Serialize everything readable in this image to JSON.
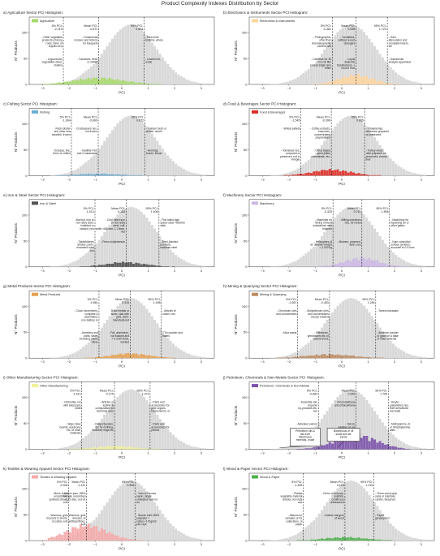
{
  "title": "Product Complexity Indexes Distribution by Sector",
  "axes": {
    "xlabel": "PCI",
    "ylabel": "N° Products",
    "xlim": [
      -3.5,
      3.5
    ],
    "ylim": [
      0,
      130
    ],
    "xticks": [
      "−3",
      "−2",
      "−1",
      "0",
      "1",
      "2",
      "3"
    ],
    "yticks": [
      "0",
      "50",
      "100"
    ],
    "grid": false,
    "legend_placement": "top-left",
    "background_color": "#d9d9d9"
  },
  "chart_data": [
    {
      "type": "bar",
      "panel": "a",
      "title": "a) Agriculture Sector PCI Histogram:",
      "legend": "Agriculture",
      "color": "#a6d96a",
      "stats": {
        "p5": "5% PCI:\n-2.210",
        "mean": "Mean PCI:\n-0.872",
        "p95": "95% PCI:\n0.844"
      },
      "annotations": [
        {
          "col": "p5",
          "row": "top",
          "text": "- Other vegetable\nproducts (chicory\nroots, tuber of\nkoyaku etc)"
        },
        {
          "col": "p5",
          "row": "bot",
          "text": "- Leguminous\nvegetables dried,\nshelled"
        },
        {
          "col": "mean",
          "row": "top",
          "text": "- Ornamental\nmosses and lichens\nfor bouquets"
        },
        {
          "col": "mean",
          "row": "bot",
          "text": "- Tomatoes, fresh\nor chilled"
        },
        {
          "col": "p95",
          "row": "top",
          "text": "- Raw mink\nfurskins, whole"
        },
        {
          "col": "p95",
          "row": "bot",
          "text": "- Linseed oil,\ncrude"
        }
      ]
    },
    {
      "type": "bar",
      "panel": "b",
      "title": "b) Electronics & Instruments Sector PCI Histogram:",
      "legend": "Electronics & Instruments",
      "color": "#fdd49e",
      "stats": {
        "p5": "5% PCI:\n-0.361",
        "mean": "Mean PCI:\n0.538",
        "p95": "95% PCI:\n1.723"
      },
      "annotations": [
        {
          "col": "p5",
          "row": "top",
          "text": "- Photographic,\nother than\ncinematographic\ncamera nes"
        },
        {
          "col": "p5",
          "row": "bot",
          "text": "- Cameras for 35\nmm roll film\nexcept single lens\nreflex"
        },
        {
          "col": "mean",
          "row": "top",
          "text": "- Turntables,\nwithout record\nchangers"
        },
        {
          "col": "mean",
          "row": "bot",
          "text": "- Liquid\ndielectric\ntransformers, >\n10,000 KVA"
        },
        {
          "col": "p95",
          "row": "top",
          "text": "- Gain,\nattenuation and\ncrosstalk meters,\netc"
        },
        {
          "col": "p95",
          "row": "bot",
          "text": "- Gas/smoke\nanalysis apparatus"
        }
      ]
    },
    {
      "type": "bar",
      "panel": "c",
      "title": "c) Fishing Sector PCI Histogram:",
      "legend": "Fishing",
      "color": "#6baed6",
      "stats": {
        "p5": "5% PCI:\n-1.904",
        "mean": "Mean PCI:\n-0.890",
        "p95": "95% PCI:\n0.872"
      },
      "annotations": [
        {
          "col": "p5",
          "row": "top",
          "text": "- Rock lobster\nand other sea\ncrawfish, frozen"
        },
        {
          "col": "p5",
          "row": "bot",
          "text": "- Octopus, live,\nfresh or chilled"
        },
        {
          "col": "mean",
          "row": "top",
          "text": "- Crustaceans nes,\nnot frozen"
        },
        {
          "col": "mean",
          "row": "bot",
          "text": "- Inedible Fish\nand Crustaceans"
        },
        {
          "col": "p95",
          "row": "top",
          "text": "- Salmon fresh or\nchilled, whole"
        },
        {
          "col": "p95",
          "row": "bot",
          "text": "- Herrings,\nfrozen, whole"
        }
      ]
    },
    {
      "type": "bar",
      "panel": "d",
      "title": "d) Food & Beverages Sector PCI Histogram:",
      "legend": "Food & Beverages",
      "color": "#de2d26",
      "stats": {
        "p5": "5% PCI:\n-1.545",
        "mean": "Mean PCI:\n-0.396",
        "p95": "95% PCI:\n0.865"
      },
      "annotations": [
        {
          "col": "p5",
          "row": "top",
          "text": "- Wheat pellets"
        },
        {
          "col": "p5",
          "row": "bot",
          "text": "- Tomatoes nes,\nprepared or\npreserved, not in\nvinegar"
        },
        {
          "col": "mean",
          "row": "top",
          "text": "- Coffee extracts,\nessences,\nconcentrates,\npreparations"
        },
        {
          "col": "mean",
          "row": "bot",
          "text": "- Citrus based\njams jellies\nmarmalade, etc."
        },
        {
          "col": "p95",
          "row": "top",
          "text": "- Strawberries,\notherwise prepared\nor preserved"
        },
        {
          "col": "p95",
          "row": "bot",
          "text": "- Turkey meat,\noffal prepared or\npreserved, except\nliver"
        }
      ]
    },
    {
      "type": "bar",
      "panel": "e",
      "title": "e) Iron & Steel Sector PCI Histogram:",
      "legend": "Iron & Steel",
      "color": "#525252",
      "stats": {
        "p5": "5% PCI:\n-1.013",
        "mean": "Mean PCI:\n0.163",
        "p95": "95% PCI:\n1.408"
      },
      "annotations": [
        {
          "col": "p5",
          "row": "top",
          "text": "- Bar/rod, iron or\nnon-alloy steel,\nindented or\ntwisted, nes"
        },
        {
          "col": "p5",
          "row": "bot",
          "text": "- Table/kitchen\narticles, parts,\nenameled cast\niron"
        },
        {
          "col": "mean",
          "row": "top",
          "text": "- Cold rolled iron\nor non-alloy\nsteel, coil,\nwidth >600mm,1-1.5mm,\nnes"
        },
        {
          "col": "mean",
          "row": "bot",
          "text": "- Ferro-molybdenum"
        },
        {
          "col": "p95",
          "row": "top",
          "text": "- Flat rolled high\nspeed steel >600mm\nwide"
        },
        {
          "col": "p95",
          "row": "bot",
          "text": "- Semi-finished\nproducts,\nstainless steel"
        }
      ]
    },
    {
      "type": "bar",
      "panel": "f",
      "title": "f) Machinery Sector PCI Histogram:",
      "legend": "Machinery",
      "color": "#cbb8e3",
      "stats": {
        "p5": "5% PCI:\n-0.333",
        "mean": "Mean PCI:\n0.762",
        "p95": "95% PCI:\n1.806"
      },
      "annotations": [
        {
          "col": "p5",
          "row": "top",
          "text": "- Machines for\nmixing mineral\nsubstances with\nbitumen"
        },
        {
          "col": "p5",
          "row": "bot",
          "text": "- Helicopters of\nan unladen weight\n< 2,000 kg"
        },
        {
          "col": "mean",
          "row": "top",
          "text": "- Milling machines\nnes, for metal"
        },
        {
          "col": "mean",
          "row": "bot",
          "text": "- Mowers, powered,\nlawn, nes"
        },
        {
          "col": "p95",
          "row": "top",
          "text": "- Machinery for\nliquefying air or\nother gases"
        },
        {
          "col": "p95",
          "row": "bot",
          "text": "- Num controlled\nsurface grinders,\naccurate to 0.01mm"
        }
      ]
    },
    {
      "type": "bar",
      "panel": "g",
      "title": "g) Metal Products Sector PCI Histogram:",
      "legend": "Metal Products",
      "color": "#e6a04f",
      "stats": {
        "p5": "5% PCI:\n-0.861",
        "mean": "Mean PCI:\n0.315",
        "p95": "95% PCI:\n1.498"
      },
      "annotations": [
        {
          "col": "p5",
          "row": "top",
          "text": "- Clock movements,\ncomplete &\nassembled,\nnon-battery re"
        },
        {
          "col": "p5",
          "row": "bot",
          "text": "- Jewellery and\nparts, silver,\nincluding plated\nsilver"
        },
        {
          "col": "mean",
          "row": "top",
          "text": "- Base metals or\nsilver, clad with\ngold, semi-\nmanufactured"
        },
        {
          "col": "mean",
          "row": "bot",
          "text": "- Foil, aluminium,\nnot backed and\n> 0.2mm thick,\nworked"
        },
        {
          "col": "p95",
          "row": "top",
          "text": "- Articles of\nnickel, nes"
        },
        {
          "col": "p95",
          "row": "bot",
          "text": "- Tin powder and\nflakes"
        }
      ]
    },
    {
      "type": "bar",
      "panel": "h",
      "title": "h) Mining & Quarrying Sector PCI Histogram:",
      "legend": "Mining & Quarrying",
      "color": "#bc8a5f",
      "stats": {
        "p5": "5% PCI:\n-1.667",
        "mean": "Mean PCI:\n-0.463",
        "p95": "95% PCI:\n1.284"
      },
      "annotations": [
        {
          "col": "p5",
          "row": "top",
          "text": "- Chromium ores\nand concentrates"
        },
        {
          "col": "p5",
          "row": "bot",
          "text": "- Mica waste"
        },
        {
          "col": "mean",
          "row": "top",
          "text": "- Molybdenum ores\nand concentrates\nexcept roasted"
        },
        {
          "col": "mean",
          "row": "bot",
          "text": "- Millstones,\ngrindstones etc of\nnatural stone"
        },
        {
          "col": "p95",
          "row": "top",
          "text": "- Tarred macadam"
        },
        {
          "col": "p95",
          "row": "bot",
          "text": "- Abrasive powder\nor grain on a base\nof other material"
        }
      ]
    },
    {
      "type": "bar",
      "panel": "i",
      "title": "i) Other Manufacturing Sector PCI Histogram:",
      "legend": "Other Manufacturing",
      "color": "#eef29b",
      "stats": {
        "p5": "5% PCI:\n-1.513",
        "mean": "Mean PCI:\n-0.275",
        "p95": "95% PCI:\n1.072"
      },
      "annotations": [
        {
          "col": "p5",
          "row": "top",
          "text": "- Umbrellas not\nwith telescopic\nshaft"
        },
        {
          "col": "p5",
          "row": "bot",
          "text": "- Wigs, false\nbeards, eyebrows\netc, of other\nmaterials"
        },
        {
          "col": "mean",
          "row": "top",
          "text": "- Articles of\nleather &\ncomposition for\ntechnical uses"
        },
        {
          "col": "mean",
          "row": "bot",
          "text": "- Clasps/buckles,\netc for clothing,\nfootwear, bags etc"
        },
        {
          "col": "p95",
          "row": "top",
          "text": "- Parts and\naccessories for\npipe organs,\nharmoniums, et"
        },
        {
          "col": "p95",
          "row": "bot",
          "text": "- Parts and\naccessories for\npianos"
        }
      ]
    },
    {
      "type": "bar",
      "panel": "j",
      "title": "j) Petroleum, Chemicals & Non-Metals Sector PCI Histogram:",
      "legend": "Petroleum, Chemicals & Non-Metals",
      "color": "#7b52ab",
      "stats": {
        "p5": "5% PCI:\n-0.884",
        "mean": "Mean PCI:\n0.545",
        "p95": "95% PCI:\n1.765"
      },
      "annotations": [
        {
          "col": "p5",
          "row": "top",
          "text": "- Essential oils,\nterpenic\nby-products etc,\nnes"
        },
        {
          "col": "p5",
          "row": "bot",
          "text": "- Activated carbon"
        },
        {
          "col": "mean",
          "row": "top",
          "text": "- Chloromethane\nand chloroethane"
        },
        {
          "col": "mean",
          "row": "bot",
          "text": "- Tall oil,\nwhether or not\nrefined"
        },
        {
          "col": "p95",
          "row": "top",
          "text": "- Acrylic\npolyamines nes,\ntheir derivatives\nand salts"
        },
        {
          "col": "p95",
          "row": "bot",
          "text": "- Methylamine, di-\nor trimethylamine,\nsalts"
        }
      ],
      "boxes": [
        "Petroleum oils &\noils from\nbituminous\nminerals, crude",
        "Bituminous or oil\nshale and tar\nsands"
      ]
    },
    {
      "type": "bar",
      "panel": "k",
      "title": "k) Textiles & Wearing Apparel Sector PCI Histogram:",
      "legend": "Textiles & Wearing Apparel",
      "color": "#f4a9a8",
      "stats": {
        "p5": "5% PCI:\n-2.008",
        "mean": "Mean PCI:\n-1.331",
        "p95": "95% PCI:\n0.508"
      },
      "annotations": [
        {
          "col": "p5",
          "row": "top",
          "text": "- Mens, boys\nensembles,\nsynthetic fibres,\nknit"
        },
        {
          "col": "p5",
          "row": "bot",
          "text": "- Womens, girls\ntrousers & shorts,\nof cotton, knit"
        },
        {
          "col": "mean",
          "row": "top",
          "text": "- Cotton yarn >85%\nmultiple uncombed\n<125 dtex, not ret"
        },
        {
          "col": "mean",
          "row": "bot",
          "text": "- Womens, girls\ndresses, of\nartificial fibres,\nknit"
        },
        {
          "col": "p95",
          "row": "top",
          "text": "- Yarn of viscose\nrayon, single\nuntwisted nes not\nret"
        },
        {
          "col": "p95",
          "row": "bot",
          "text": "- Woven twill <85%\npolyester +\ncotton,<170g/m2\nyarn dye"
        }
      ]
    },
    {
      "type": "bar",
      "panel": "l",
      "title": "l) Wood & Paper Sector PCI Histogram:",
      "legend": "Wood & Paper",
      "color": "#4daf4a",
      "stats": {
        "p5": "5% PCI:\n-1.455",
        "mean": "Mean PCI:\n0.119",
        "p95": "95% PCI:\n1.215"
      },
      "annotations": [
        {
          "col": "p5",
          "row": "top",
          "text": "- Plaited\nvegetable material\narticles not mats\nand"
        },
        {
          "col": "p5",
          "row": "bot",
          "text": "- Albums for\nsamples or for\ncollections, of\npaper"
        },
        {
          "col": "mean",
          "row": "top",
          "text": "- Chem wood pulp,\nsulphite,\nconiferous\nunbleached"
        },
        {
          "col": "mean",
          "row": "bot",
          "text": "- Clothes hangers\nof wood"
        },
        {
          "col": "p95",
          "row": "top",
          "text": "- Chem wood pulp,\nsoda or sulphate,\nconifer, bleached"
        },
        {
          "col": "p95",
          "row": "bot",
          "text": "- Paper,\ngreaseproof"
        }
      ]
    }
  ]
}
